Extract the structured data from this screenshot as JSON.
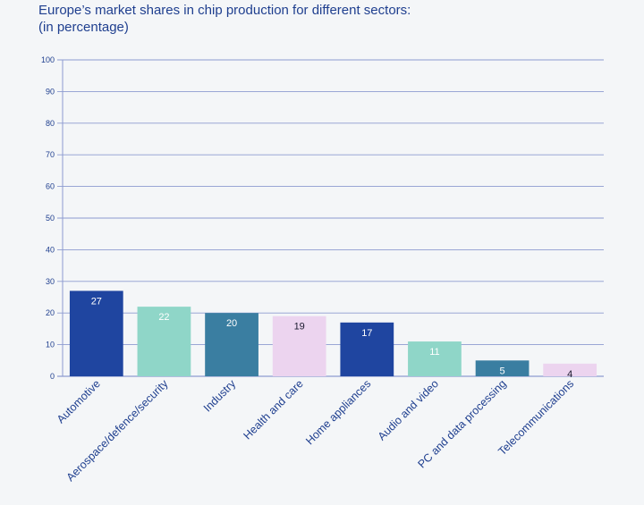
{
  "chart_data": {
    "type": "bar",
    "title": "Europe’s market shares in chip production for different sectors:",
    "subtitle": "(in percentage)",
    "xlabel": "",
    "ylabel": "",
    "ylim": [
      0,
      100
    ],
    "yticks": [
      0,
      10,
      20,
      30,
      40,
      50,
      60,
      70,
      80,
      90,
      100
    ],
    "grid": true,
    "categories": [
      "Automotive",
      "Aerospace/defence/security",
      "Industry",
      "Health and care",
      "Home appliances",
      "Audio and video",
      "PC and data processing",
      "Telecommunications"
    ],
    "values": [
      27,
      22,
      20,
      19,
      17,
      11,
      5,
      4
    ],
    "colors": [
      "#1f45a0",
      "#8fd6c8",
      "#3a7ea1",
      "#ecd4ef",
      "#1f45a0",
      "#8fd6c8",
      "#3a7ea1",
      "#ecd4ef"
    ],
    "label_colors": [
      "#ffffff",
      "#ffffff",
      "#ffffff",
      "#1a1a2e",
      "#ffffff",
      "#ffffff",
      "#ffffff",
      "#1a1a2e"
    ]
  }
}
